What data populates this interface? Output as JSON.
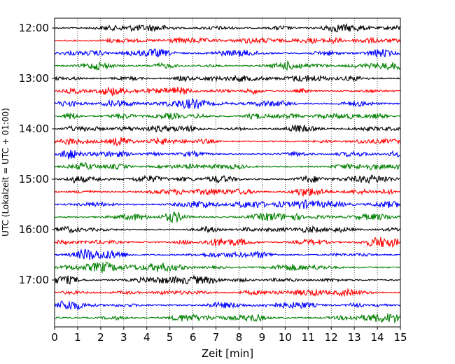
{
  "chart_data": {
    "type": "line",
    "xlabel": "Zeit  [min]",
    "ylabel": "UTC (Lokalzeit = UTC + 01:00)",
    "xlim": [
      0,
      15
    ],
    "x_ticks": [
      "0",
      "1",
      "2",
      "3",
      "4",
      "5",
      "6",
      "7",
      "8",
      "9",
      "10",
      "11",
      "12",
      "13",
      "14",
      "15"
    ],
    "y_tick_labels": [
      "12:00",
      "13:00",
      "14:00",
      "15:00",
      "16:00",
      "17:00"
    ],
    "y_tick_rows": [
      0,
      4,
      8,
      12,
      16,
      20
    ],
    "grid": "vertical dotted at each minute",
    "trace_interval_minutes": 15,
    "traces": [
      {
        "start": "12:00",
        "color": "#000000"
      },
      {
        "start": "12:15",
        "color": "#ff0000"
      },
      {
        "start": "12:30",
        "color": "#0000ff"
      },
      {
        "start": "12:45",
        "color": "#008000"
      },
      {
        "start": "13:00",
        "color": "#000000"
      },
      {
        "start": "13:15",
        "color": "#ff0000"
      },
      {
        "start": "13:30",
        "color": "#0000ff"
      },
      {
        "start": "13:45",
        "color": "#008000"
      },
      {
        "start": "14:00",
        "color": "#000000"
      },
      {
        "start": "14:15",
        "color": "#ff0000"
      },
      {
        "start": "14:30",
        "color": "#0000ff"
      },
      {
        "start": "14:45",
        "color": "#008000"
      },
      {
        "start": "15:00",
        "color": "#000000"
      },
      {
        "start": "15:15",
        "color": "#ff0000"
      },
      {
        "start": "15:30",
        "color": "#0000ff"
      },
      {
        "start": "15:45",
        "color": "#008000"
      },
      {
        "start": "16:00",
        "color": "#000000"
      },
      {
        "start": "16:15",
        "color": "#ff0000"
      },
      {
        "start": "16:30",
        "color": "#0000ff"
      },
      {
        "start": "16:45",
        "color": "#008000"
      },
      {
        "start": "17:00",
        "color": "#000000"
      },
      {
        "start": "17:15",
        "color": "#ff0000"
      },
      {
        "start": "17:30",
        "color": "#0000ff"
      },
      {
        "start": "17:45",
        "color": "#008000"
      }
    ]
  }
}
